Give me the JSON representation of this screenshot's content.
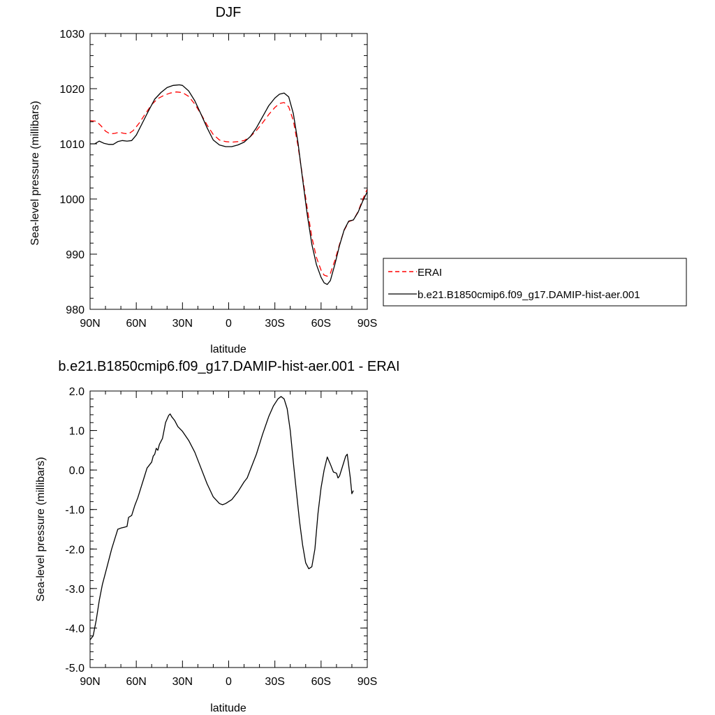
{
  "chart_data": [
    {
      "type": "line",
      "title": "DJF",
      "xlabel": "latitude",
      "ylabel": "Sea-level pressure (millibars)",
      "xlim": [
        -90,
        90
      ],
      "ylim": [
        980,
        1030
      ],
      "x_ticks": [
        -90,
        -60,
        -30,
        0,
        30,
        60,
        90
      ],
      "x_tick_labels": [
        "90N",
        "60N",
        "30N",
        "0",
        "30S",
        "60S",
        "90S"
      ],
      "y_ticks": [
        980,
        990,
        1000,
        1010,
        1020,
        1030
      ],
      "y_tick_labels": [
        "980",
        "990",
        "1000",
        "1010",
        "1020",
        "1030"
      ],
      "legend": "right",
      "series": [
        {
          "name": "ERAI",
          "color": "#ff0000",
          "dash": "dashed",
          "points": [
            [
              -90,
              1014.2
            ],
            [
              -86,
              1014.1
            ],
            [
              -83,
              1013.3
            ],
            [
              -80,
              1012.3
            ],
            [
              -77,
              1011.8
            ],
            [
              -74,
              1011.9
            ],
            [
              -71,
              1012.1
            ],
            [
              -68,
              1011.9
            ],
            [
              -65,
              1011.8
            ],
            [
              -62,
              1012.4
            ],
            [
              -58,
              1013.8
            ],
            [
              -54,
              1015.5
            ],
            [
              -50,
              1017.1
            ],
            [
              -46,
              1018.2
            ],
            [
              -42,
              1018.8
            ],
            [
              -38,
              1019.2
            ],
            [
              -34,
              1019.4
            ],
            [
              -30,
              1019.3
            ],
            [
              -26,
              1018.6
            ],
            [
              -22,
              1017.2
            ],
            [
              -18,
              1015.4
            ],
            [
              -14,
              1013.4
            ],
            [
              -10,
              1011.7
            ],
            [
              -6,
              1010.7
            ],
            [
              -2,
              1010.4
            ],
            [
              2,
              1010.3
            ],
            [
              6,
              1010.4
            ],
            [
              10,
              1010.6
            ],
            [
              14,
              1011.3
            ],
            [
              18,
              1012.4
            ],
            [
              22,
              1013.8
            ],
            [
              26,
              1015.3
            ],
            [
              30,
              1016.6
            ],
            [
              33,
              1017.3
            ],
            [
              36,
              1017.5
            ],
            [
              39,
              1016.7
            ],
            [
              42,
              1014.2
            ],
            [
              45,
              1009.6
            ],
            [
              48,
              1004.0
            ],
            [
              51,
              998.3
            ],
            [
              54,
              993.1
            ],
            [
              57,
              989.4
            ],
            [
              60,
              987.1
            ],
            [
              62,
              986.2
            ],
            [
              64,
              986.0
            ],
            [
              66,
              986.5
            ],
            [
              69,
              988.9
            ],
            [
              72,
              991.8
            ],
            [
              75,
              994.3
            ],
            [
              78,
              995.9
            ],
            [
              81,
              996.2
            ],
            [
              84,
              997.7
            ],
            [
              87,
              999.9
            ],
            [
              90,
              1001.8
            ]
          ]
        },
        {
          "name": "b.e21.B1850cmip6.f09_g17.DAMIP-hist-aer.001",
          "color": "#000000",
          "dash": "solid",
          "points": [
            [
              -90,
              1010.0
            ],
            [
              -87,
              1010.0
            ],
            [
              -84,
              1010.5
            ],
            [
              -81,
              1010.1
            ],
            [
              -78,
              1009.9
            ],
            [
              -75,
              1009.9
            ],
            [
              -72,
              1010.4
            ],
            [
              -69,
              1010.6
            ],
            [
              -66,
              1010.5
            ],
            [
              -63,
              1010.6
            ],
            [
              -60,
              1011.6
            ],
            [
              -56,
              1013.8
            ],
            [
              -52,
              1016.0
            ],
            [
              -48,
              1018.1
            ],
            [
              -44,
              1019.3
            ],
            [
              -40,
              1020.2
            ],
            [
              -36,
              1020.6
            ],
            [
              -32,
              1020.7
            ],
            [
              -30,
              1020.6
            ],
            [
              -26,
              1019.6
            ],
            [
              -22,
              1017.8
            ],
            [
              -18,
              1015.4
            ],
            [
              -14,
              1012.9
            ],
            [
              -10,
              1010.7
            ],
            [
              -6,
              1009.8
            ],
            [
              -2,
              1009.5
            ],
            [
              2,
              1009.5
            ],
            [
              6,
              1009.8
            ],
            [
              10,
              1010.3
            ],
            [
              14,
              1011.3
            ],
            [
              18,
              1012.9
            ],
            [
              22,
              1014.9
            ],
            [
              26,
              1016.9
            ],
            [
              30,
              1018.3
            ],
            [
              33,
              1019.0
            ],
            [
              36,
              1019.2
            ],
            [
              39,
              1018.5
            ],
            [
              42,
              1015.5
            ],
            [
              45,
              1010.2
            ],
            [
              48,
              1003.6
            ],
            [
              51,
              997.2
            ],
            [
              54,
              991.8
            ],
            [
              57,
              988.1
            ],
            [
              60,
              985.8
            ],
            [
              62,
              984.8
            ],
            [
              64,
              984.5
            ],
            [
              66,
              985.2
            ],
            [
              69,
              988.2
            ],
            [
              72,
              991.6
            ],
            [
              75,
              994.4
            ],
            [
              78,
              996.0
            ],
            [
              81,
              996.2
            ],
            [
              84,
              997.6
            ],
            [
              87,
              999.6
            ],
            [
              90,
              1001.3
            ]
          ]
        }
      ]
    },
    {
      "type": "line",
      "title": "b.e21.B1850cmip6.f09_g17.DAMIP-hist-aer.001 - ERAI",
      "xlabel": "latitude",
      "ylabel": "Sea-level pressure (millibars)",
      "xlim": [
        -90,
        90
      ],
      "ylim": [
        -5,
        2
      ],
      "x_ticks": [
        -90,
        -60,
        -30,
        0,
        30,
        60,
        90
      ],
      "x_tick_labels": [
        "90N",
        "60N",
        "30N",
        "0",
        "30S",
        "60S",
        "90S"
      ],
      "y_ticks": [
        -5,
        -4,
        -3,
        -2,
        -1,
        0,
        1,
        2
      ],
      "y_tick_labels": [
        "-5.0",
        "-4.0",
        "-3.0",
        "-2.0",
        "-1.0",
        "0.0",
        "1.0",
        "2.0"
      ],
      "series": [
        {
          "color": "#000000",
          "dash": "solid",
          "points": [
            [
              -90,
              -4.3
            ],
            [
              -88,
              -4.2
            ],
            [
              -86,
              -3.8
            ],
            [
              -84,
              -3.3
            ],
            [
              -82,
              -2.9
            ],
            [
              -80,
              -2.6
            ],
            [
              -78,
              -2.3
            ],
            [
              -76,
              -2.0
            ],
            [
              -74,
              -1.75
            ],
            [
              -72,
              -1.5
            ],
            [
              -70,
              -1.47
            ],
            [
              -68,
              -1.45
            ],
            [
              -66,
              -1.43
            ],
            [
              -65,
              -1.2
            ],
            [
              -63,
              -1.15
            ],
            [
              -61,
              -0.9
            ],
            [
              -59,
              -0.7
            ],
            [
              -57,
              -0.45
            ],
            [
              -55,
              -0.2
            ],
            [
              -53,
              0.05
            ],
            [
              -51,
              0.15
            ],
            [
              -50,
              0.2
            ],
            [
              -49,
              0.35
            ],
            [
              -48,
              0.4
            ],
            [
              -47,
              0.55
            ],
            [
              -46,
              0.5
            ],
            [
              -45,
              0.65
            ],
            [
              -43,
              0.8
            ],
            [
              -42,
              1.0
            ],
            [
              -41,
              1.2
            ],
            [
              -39,
              1.38
            ],
            [
              -38,
              1.42
            ],
            [
              -37,
              1.35
            ],
            [
              -35,
              1.25
            ],
            [
              -33,
              1.1
            ],
            [
              -30,
              0.98
            ],
            [
              -26,
              0.75
            ],
            [
              -22,
              0.45
            ],
            [
              -18,
              0.05
            ],
            [
              -14,
              -0.35
            ],
            [
              -10,
              -0.68
            ],
            [
              -6,
              -0.85
            ],
            [
              -4,
              -0.88
            ],
            [
              -2,
              -0.85
            ],
            [
              2,
              -0.75
            ],
            [
              6,
              -0.55
            ],
            [
              10,
              -0.3
            ],
            [
              12,
              -0.2
            ],
            [
              14,
              0.0
            ],
            [
              18,
              0.4
            ],
            [
              22,
              0.9
            ],
            [
              26,
              1.35
            ],
            [
              29,
              1.62
            ],
            [
              32,
              1.8
            ],
            [
              34,
              1.86
            ],
            [
              36,
              1.8
            ],
            [
              38,
              1.55
            ],
            [
              40,
              1.0
            ],
            [
              42,
              0.2
            ],
            [
              44,
              -0.55
            ],
            [
              46,
              -1.3
            ],
            [
              48,
              -1.9
            ],
            [
              50,
              -2.35
            ],
            [
              52,
              -2.5
            ],
            [
              54,
              -2.45
            ],
            [
              56,
              -2.0
            ],
            [
              58,
              -1.1
            ],
            [
              60,
              -0.45
            ],
            [
              62,
              0.0
            ],
            [
              64,
              0.33
            ],
            [
              66,
              0.15
            ],
            [
              68,
              -0.05
            ],
            [
              70,
              -0.08
            ],
            [
              71,
              -0.2
            ],
            [
              72,
              -0.15
            ],
            [
              74,
              0.1
            ],
            [
              76,
              0.35
            ],
            [
              77,
              0.4
            ],
            [
              79,
              -0.2
            ],
            [
              80,
              -0.6
            ],
            [
              81,
              -0.52
            ]
          ]
        }
      ]
    }
  ]
}
